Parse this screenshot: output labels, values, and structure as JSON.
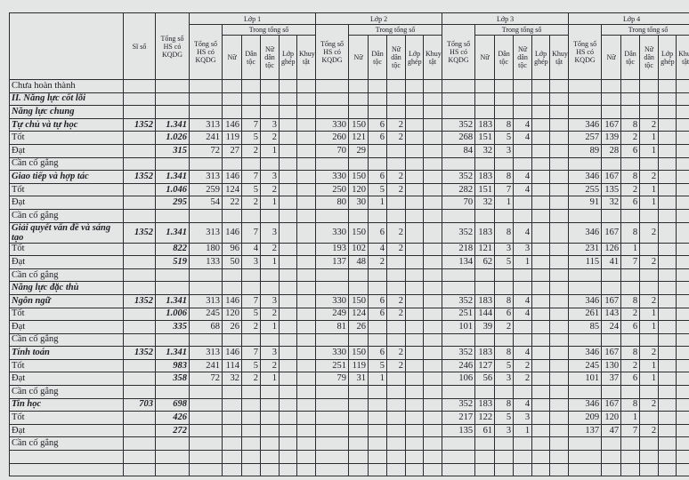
{
  "table": {
    "header": {
      "si_so": "Sĩ số",
      "total": "Tổng số HS có KQDG",
      "classes": [
        {
          "name": "Lớp 1",
          "group": "Trong tổng số",
          "total": "Tổng số HS có KQDG",
          "cols": [
            "Nữ",
            "Dân tộc",
            "Nữ dân tộc",
            "Lớp ghép",
            "Khuyết tật"
          ]
        },
        {
          "name": "Lớp 2",
          "group": "Trong tổng số",
          "total": "Tổng số HS có KQDG",
          "cols": [
            "Nữ",
            "Dân tộc",
            "Nữ dân tộc",
            "Lớp ghép",
            "Khuyết tật"
          ]
        },
        {
          "name": "Lớp 3",
          "group": "Trong tổng số",
          "total": "Tổng số HS có KQDG",
          "cols": [
            "Nữ",
            "Dân tộc",
            "Nữ dân tộc",
            "Lớp ghép",
            "Khuyết tật"
          ]
        },
        {
          "name": "Lớp 4",
          "group": "Trong tổng số",
          "total": "Tổng số HS có KQDG",
          "cols": [
            "Nữ",
            "Dân tộc",
            "Nữ dân tộc",
            "Lớp ghép",
            "Khuyết tật"
          ]
        }
      ]
    },
    "rows": [
      {
        "label": "Chưa hoàn thành"
      },
      {
        "label": "II. Năng lực cốt lõi"
      },
      {
        "label": "Năng lực chung"
      },
      {
        "label": "Tự chủ và tự học",
        "cells": [
          "1352",
          "1.341",
          "313",
          "146",
          "7",
          "3",
          null,
          null,
          "330",
          "150",
          "6",
          "2",
          null,
          null,
          "352",
          "183",
          "8",
          "4",
          null,
          null,
          "346",
          "167",
          "8",
          "2",
          null,
          null
        ]
      },
      {
        "label": "Tốt",
        "cells": [
          null,
          "1.026",
          "241",
          "119",
          "5",
          "2",
          null,
          null,
          "260",
          "121",
          "6",
          "2",
          null,
          null,
          "268",
          "151",
          "5",
          "4",
          null,
          null,
          "257",
          "139",
          "2",
          "1",
          null,
          null
        ]
      },
      {
        "label": "Đạt",
        "cells": [
          null,
          "315",
          "72",
          "27",
          "2",
          "1",
          null,
          null,
          "70",
          "29",
          null,
          null,
          null,
          null,
          "84",
          "32",
          "3",
          null,
          null,
          null,
          "89",
          "28",
          "6",
          "1",
          null,
          null
        ]
      },
      {
        "label": "Cần cố gắng"
      },
      {
        "label": "Giao tiếp và hợp tác",
        "cells": [
          "1352",
          "1.341",
          "313",
          "146",
          "7",
          "3",
          null,
          null,
          "330",
          "150",
          "6",
          "2",
          null,
          null,
          "352",
          "183",
          "8",
          "4",
          null,
          null,
          "346",
          "167",
          "8",
          "2",
          null,
          null
        ]
      },
      {
        "label": "Tốt",
        "cells": [
          null,
          "1.046",
          "259",
          "124",
          "5",
          "2",
          null,
          null,
          "250",
          "120",
          "5",
          "2",
          null,
          null,
          "282",
          "151",
          "7",
          "4",
          null,
          null,
          "255",
          "135",
          "2",
          "1",
          null,
          null
        ]
      },
      {
        "label": "Đạt",
        "cells": [
          null,
          "295",
          "54",
          "22",
          "2",
          "1",
          null,
          null,
          "80",
          "30",
          "1",
          null,
          null,
          null,
          "70",
          "32",
          "1",
          null,
          null,
          null,
          "91",
          "32",
          "6",
          "1",
          null,
          null
        ]
      },
      {
        "label": "Cần cố gắng"
      },
      {
        "label": "Giải quyết vấn đề và sáng tạo",
        "cells": [
          "1352",
          "1.341",
          "313",
          "146",
          "7",
          "3",
          null,
          null,
          "330",
          "150",
          "6",
          "2",
          null,
          null,
          "352",
          "183",
          "8",
          "4",
          null,
          null,
          "346",
          "167",
          "8",
          "2",
          null,
          null
        ]
      },
      {
        "label": "Tốt",
        "cells": [
          null,
          "822",
          "180",
          "96",
          "4",
          "2",
          null,
          null,
          "193",
          "102",
          "4",
          "2",
          null,
          null,
          "218",
          "121",
          "3",
          "3",
          null,
          null,
          "231",
          "126",
          "1",
          null,
          null,
          null
        ]
      },
      {
        "label": "Đạt",
        "cells": [
          null,
          "519",
          "133",
          "50",
          "3",
          "1",
          null,
          null,
          "137",
          "48",
          "2",
          null,
          null,
          null,
          "134",
          "62",
          "5",
          "1",
          null,
          null,
          "115",
          "41",
          "7",
          "2",
          null,
          null
        ]
      },
      {
        "label": "Cần cố gắng"
      },
      {
        "label": "Năng lực đặc thù"
      },
      {
        "label": "Ngôn ngữ",
        "cells": [
          "1352",
          "1.341",
          "313",
          "146",
          "7",
          "3",
          null,
          null,
          "330",
          "150",
          "6",
          "2",
          null,
          null,
          "352",
          "183",
          "8",
          "4",
          null,
          null,
          "346",
          "167",
          "8",
          "2",
          null,
          null
        ]
      },
      {
        "label": "Tốt",
        "cells": [
          null,
          "1.006",
          "245",
          "120",
          "5",
          "2",
          null,
          null,
          "249",
          "124",
          "6",
          "2",
          null,
          null,
          "251",
          "144",
          "6",
          "4",
          null,
          null,
          "261",
          "143",
          "2",
          "1",
          null,
          null
        ]
      },
      {
        "label": "Đạt",
        "cells": [
          null,
          "335",
          "68",
          "26",
          "2",
          "1",
          null,
          null,
          "81",
          "26",
          null,
          null,
          null,
          null,
          "101",
          "39",
          "2",
          null,
          null,
          null,
          "85",
          "24",
          "6",
          "1",
          null,
          null
        ]
      },
      {
        "label": "Cần cố gắng"
      },
      {
        "label": "Tính toán",
        "cells": [
          "1352",
          "1.341",
          "313",
          "146",
          "7",
          "3",
          null,
          null,
          "330",
          "150",
          "6",
          "2",
          null,
          null,
          "352",
          "183",
          "8",
          "4",
          null,
          null,
          "346",
          "167",
          "8",
          "2",
          null,
          null
        ]
      },
      {
        "label": "Tốt",
        "cells": [
          null,
          "983",
          "241",
          "114",
          "5",
          "2",
          null,
          null,
          "251",
          "119",
          "5",
          "2",
          null,
          null,
          "246",
          "127",
          "5",
          "2",
          null,
          null,
          "245",
          "130",
          "2",
          "1",
          null,
          null
        ]
      },
      {
        "label": "Đạt",
        "cells": [
          null,
          "358",
          "72",
          "32",
          "2",
          "1",
          null,
          null,
          "79",
          "31",
          "1",
          null,
          null,
          null,
          "106",
          "56",
          "3",
          "2",
          null,
          null,
          "101",
          "37",
          "6",
          "1",
          null,
          null
        ]
      },
      {
        "label": "Cần cố gắng"
      },
      {
        "label": "Tin học",
        "cells": [
          "703",
          "698",
          null,
          null,
          null,
          null,
          null,
          null,
          null,
          null,
          null,
          null,
          null,
          null,
          "352",
          "183",
          "8",
          "4",
          null,
          null,
          "346",
          "167",
          "8",
          "2",
          null,
          null
        ]
      },
      {
        "label": "Tốt",
        "cells": [
          null,
          "426",
          null,
          null,
          null,
          null,
          null,
          null,
          null,
          null,
          null,
          null,
          null,
          null,
          "217",
          "122",
          "5",
          "3",
          null,
          null,
          "209",
          "120",
          "1",
          null,
          null,
          null
        ]
      },
      {
        "label": "Đạt",
        "cells": [
          null,
          "272",
          null,
          null,
          null,
          null,
          null,
          null,
          null,
          null,
          null,
          null,
          null,
          null,
          "135",
          "61",
          "3",
          "1",
          null,
          null,
          "137",
          "47",
          "7",
          "2",
          null,
          null
        ]
      },
      {
        "label": "Cần cố gắng"
      }
    ]
  }
}
